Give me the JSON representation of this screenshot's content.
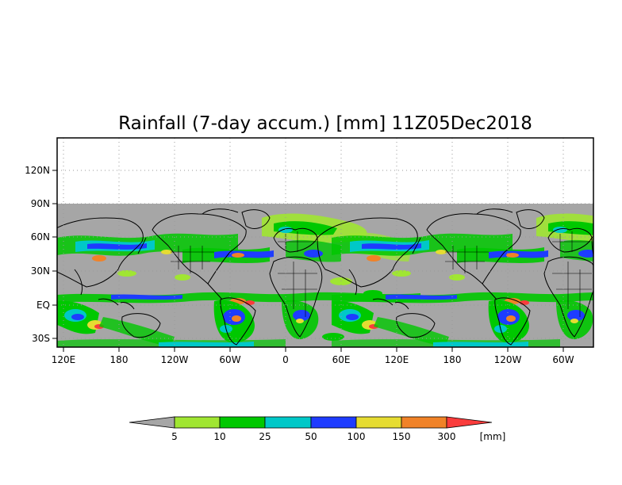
{
  "title": "Rainfall (7-day accum.) [mm] 11Z05Dec2018",
  "y_ticks": [
    "120N",
    "90N",
    "60N",
    "30N",
    "EQ",
    "30S"
  ],
  "x_ticks": [
    "120E",
    "180",
    "120W",
    "60W",
    "0",
    "60E",
    "120E",
    "180",
    "120W",
    "60W"
  ],
  "legend": {
    "ticks": [
      "5",
      "10",
      "25",
      "50",
      "100",
      "150",
      "300"
    ],
    "unit": "[mm]",
    "colors": {
      "below": "#a6a6a6",
      "c1": "#a0e632",
      "c2": "#00c800",
      "c3": "#00c8c8",
      "c4": "#1e3cff",
      "c5": "#e6dc32",
      "c6": "#f08228",
      "above": "#fa3c3c"
    }
  },
  "colors": {
    "ocean_dry": "#a6a6a6",
    "land_outline": "#000000",
    "grid": "#999999"
  }
}
